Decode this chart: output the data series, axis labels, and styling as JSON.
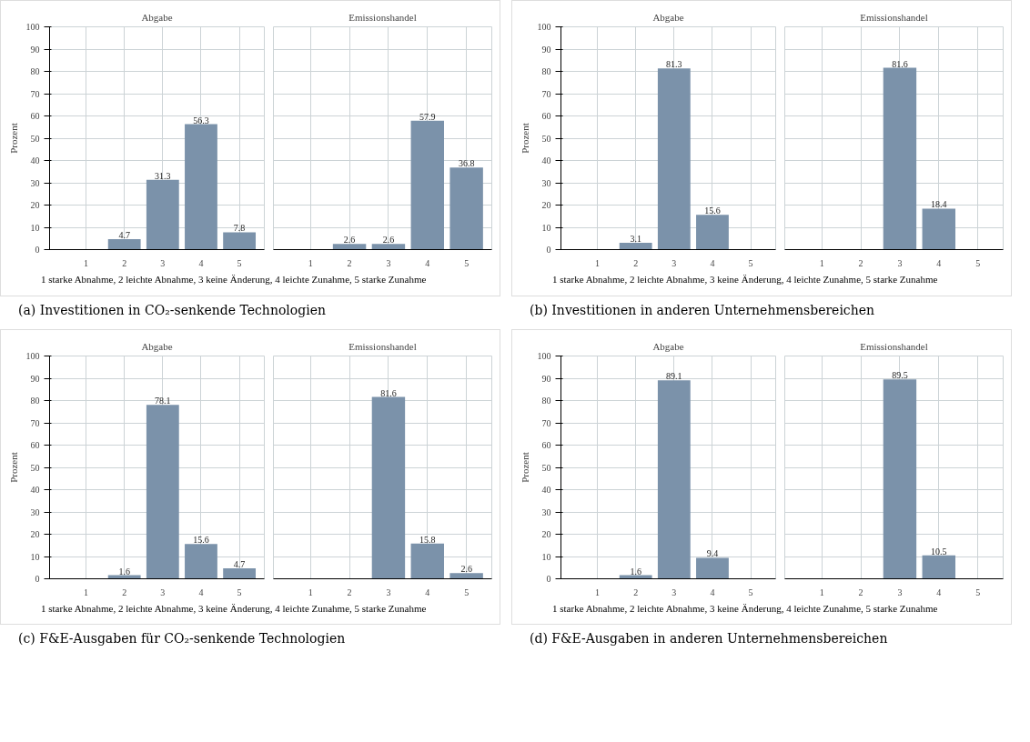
{
  "chart_data": [
    {
      "type": "bar",
      "title": "Abgabe",
      "ylabel": "Prozent",
      "categories": [
        "1",
        "2",
        "3",
        "4",
        "5"
      ],
      "values": [
        null,
        4.7,
        31.3,
        56.3,
        7.8
      ],
      "color": "#7b92aa",
      "ylim": [
        0,
        100
      ],
      "yticks": [
        0,
        10,
        20,
        30,
        40,
        50,
        60,
        70,
        80,
        90,
        100
      ],
      "grid": true,
      "data_labels": true,
      "annotations": [
        "1 starke Abnahme, 2 leichte Abnahme, 3 keine Änderung, 4 leichte Zunahme, 5 starke Zunahme",
        "(a) Investitionen in CO₂-senkende Technologien"
      ]
    },
    {
      "type": "bar",
      "title": "Emissionshandel",
      "categories": [
        "1",
        "2",
        "3",
        "4",
        "5"
      ],
      "values": [
        null,
        2.6,
        2.6,
        57.9,
        36.8
      ],
      "color": "#7b92aa",
      "ylim": [
        0,
        100
      ],
      "yticks": [
        0,
        10,
        20,
        30,
        40,
        50,
        60,
        70,
        80,
        90,
        100
      ],
      "grid": true,
      "data_labels": true,
      "tick_labels": "x"
    },
    {
      "type": "bar",
      "title": "Abgabe",
      "ylabel": "Prozent",
      "categories": [
        "1",
        "2",
        "3",
        "4",
        "5"
      ],
      "values": [
        null,
        3.1,
        81.3,
        15.6,
        null
      ],
      "color": "#7b92aa",
      "ylim": [
        0,
        100
      ],
      "yticks": [
        0,
        10,
        20,
        30,
        40,
        50,
        60,
        70,
        80,
        90,
        100
      ],
      "grid": true,
      "data_labels": true,
      "annotations": [
        "1 starke Abnahme, 2 leichte Abnahme, 3 keine Änderung, 4 leichte Zunahme, 5 starke Zunahme",
        "(b) Investitionen in anderen Unternehmensbereichen"
      ]
    },
    {
      "type": "bar",
      "title": "Emissionshandel",
      "categories": [
        "1",
        "2",
        "3",
        "4",
        "5"
      ],
      "values": [
        null,
        null,
        81.6,
        18.4,
        null
      ],
      "color": "#7b92aa",
      "ylim": [
        0,
        100
      ],
      "yticks": [
        0,
        10,
        20,
        30,
        40,
        50,
        60,
        70,
        80,
        90,
        100
      ],
      "grid": true,
      "data_labels": true,
      "tick_labels": "x"
    },
    {
      "type": "bar",
      "title": "Abgabe",
      "ylabel": "Prozent",
      "categories": [
        "1",
        "2",
        "3",
        "4",
        "5"
      ],
      "values": [
        null,
        1.6,
        78.1,
        15.6,
        4.7
      ],
      "color": "#7b92aa",
      "ylim": [
        0,
        100
      ],
      "yticks": [
        0,
        10,
        20,
        30,
        40,
        50,
        60,
        70,
        80,
        90,
        100
      ],
      "grid": true,
      "data_labels": true,
      "annotations": [
        "1 starke Abnahme, 2 leichte Abnahme, 3 keine Änderung, 4 leichte Zunahme, 5 starke Zunahme",
        "(c) F&E-Ausgaben für CO₂-senkende Technologien"
      ]
    },
    {
      "type": "bar",
      "title": "Emissionshandel",
      "categories": [
        "1",
        "2",
        "3",
        "4",
        "5"
      ],
      "values": [
        null,
        null,
        81.6,
        15.8,
        2.6
      ],
      "color": "#7b92aa",
      "ylim": [
        0,
        100
      ],
      "yticks": [
        0,
        10,
        20,
        30,
        40,
        50,
        60,
        70,
        80,
        90,
        100
      ],
      "grid": true,
      "data_labels": true,
      "tick_labels": "x"
    },
    {
      "type": "bar",
      "title": "Abgabe",
      "ylabel": "Prozent",
      "categories": [
        "1",
        "2",
        "3",
        "4",
        "5"
      ],
      "values": [
        null,
        1.6,
        89.1,
        9.4,
        null
      ],
      "color": "#7b92aa",
      "ylim": [
        0,
        100
      ],
      "yticks": [
        0,
        10,
        20,
        30,
        40,
        50,
        60,
        70,
        80,
        90,
        100
      ],
      "grid": true,
      "data_labels": true,
      "annotations": [
        "1 starke Abnahme, 2 leichte Abnahme, 3 keine Änderung, 4 leichte Zunahme, 5 starke Zunahme",
        "(d) F&E-Ausgaben in anderen Unternehmensbereichen"
      ]
    },
    {
      "type": "bar",
      "title": "Emissionshandel",
      "categories": [
        "1",
        "2",
        "3",
        "4",
        "5"
      ],
      "values": [
        null,
        null,
        89.5,
        10.5,
        null
      ],
      "color": "#7b92aa",
      "ylim": [
        0,
        100
      ],
      "yticks": [
        0,
        10,
        20,
        30,
        40,
        50,
        60,
        70,
        80,
        90,
        100
      ],
      "grid": true,
      "data_labels": true,
      "tick_labels": "x"
    }
  ]
}
